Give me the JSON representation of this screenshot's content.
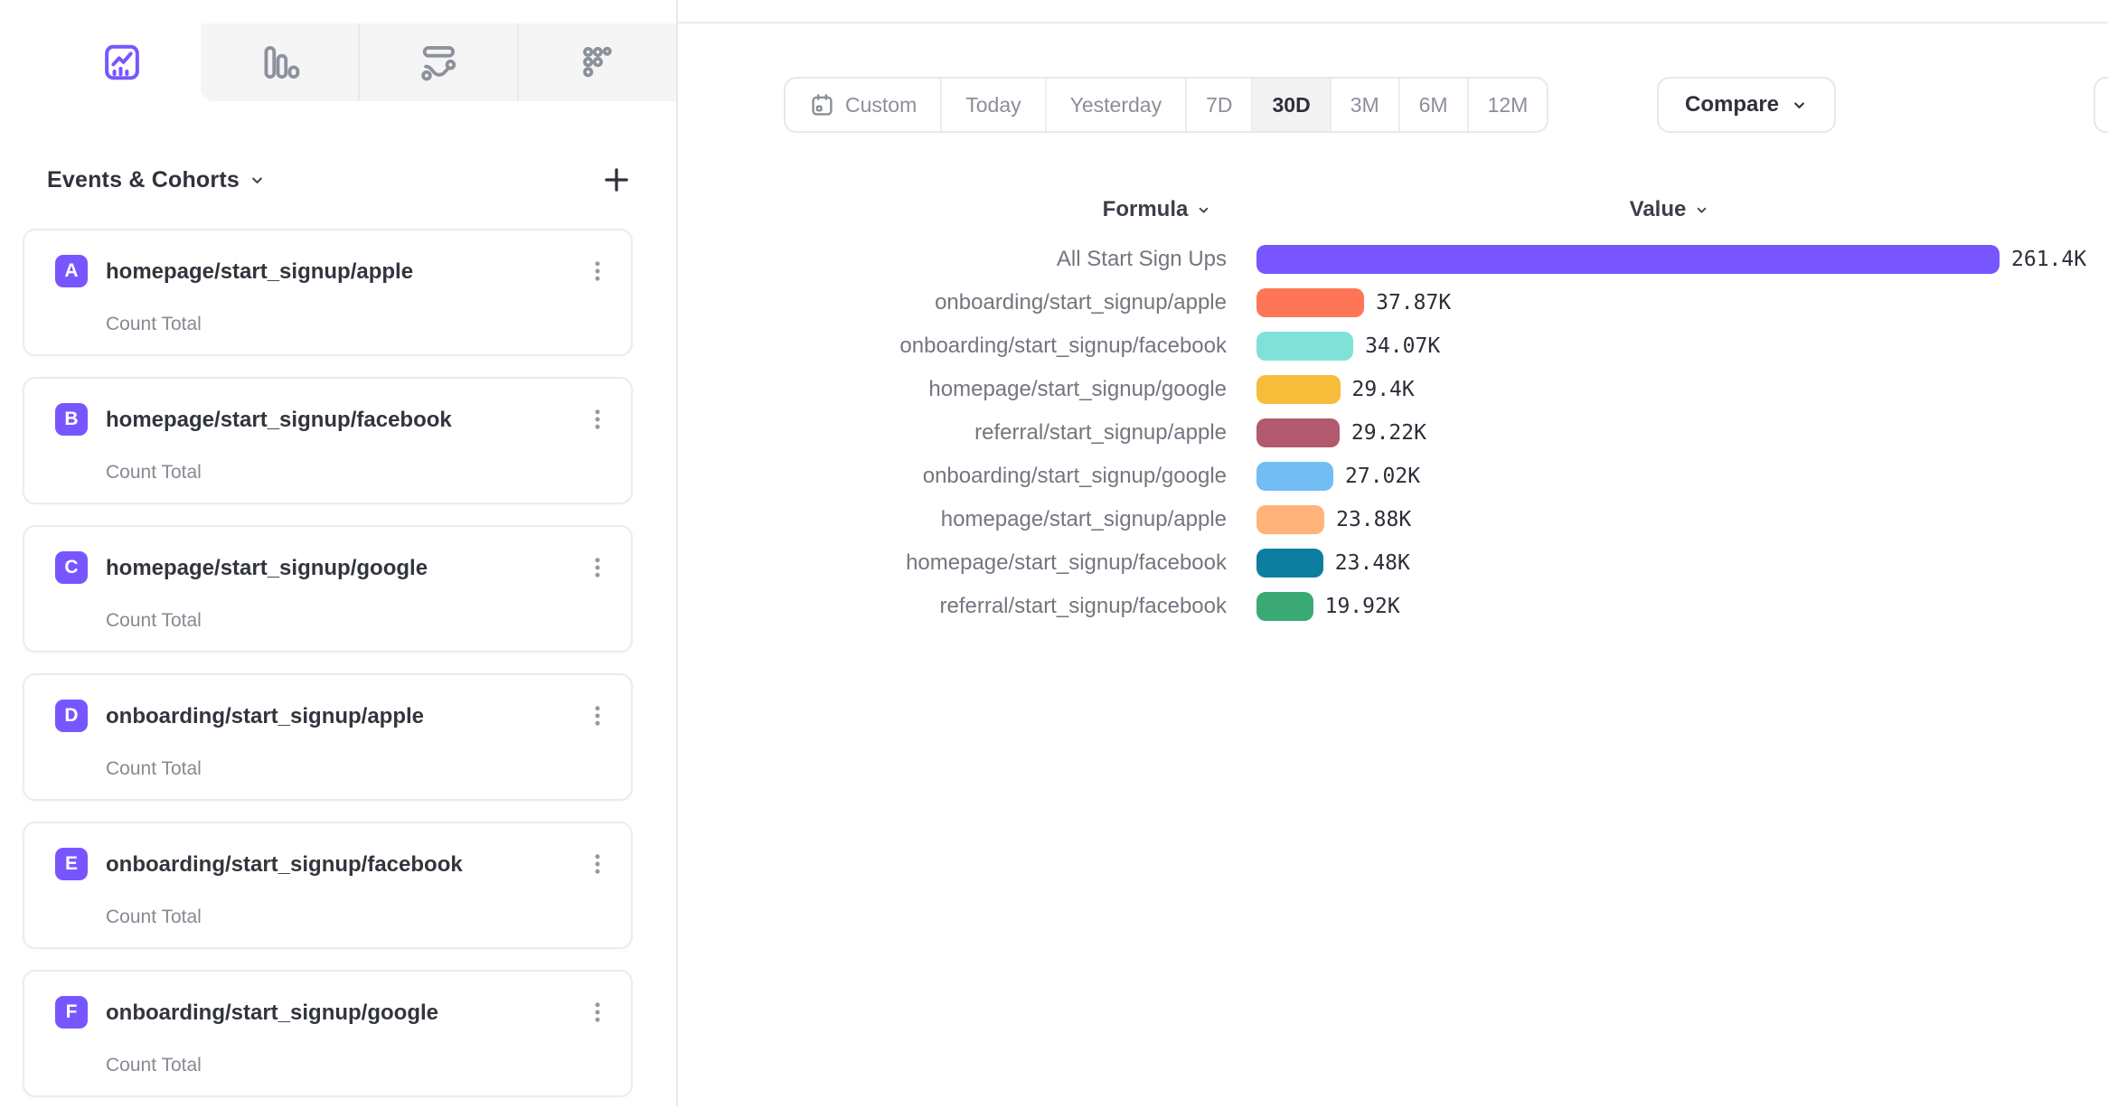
{
  "tabs": [
    {
      "id": "insights",
      "icon": "line-chart-icon",
      "selected": true
    },
    {
      "id": "bar-report",
      "icon": "bar-chart-icon",
      "selected": false
    },
    {
      "id": "flows",
      "icon": "flow-icon",
      "selected": false
    },
    {
      "id": "retention",
      "icon": "dots-grid-icon",
      "selected": false
    }
  ],
  "sidebar": {
    "title": "Events & Cohorts",
    "title_chevron_icon": "chevron-down-icon",
    "add_icon": "plus-icon",
    "badge_color": "#7856ff",
    "items": [
      {
        "letter": "A",
        "name": "homepage/start_signup/apple",
        "metric": "Count Total"
      },
      {
        "letter": "B",
        "name": "homepage/start_signup/facebook",
        "metric": "Count Total"
      },
      {
        "letter": "C",
        "name": "homepage/start_signup/google",
        "metric": "Count Total"
      },
      {
        "letter": "D",
        "name": "onboarding/start_signup/apple",
        "metric": "Count Total"
      },
      {
        "letter": "E",
        "name": "onboarding/start_signup/facebook",
        "metric": "Count Total"
      },
      {
        "letter": "F",
        "name": "onboarding/start_signup/google",
        "metric": "Count Total"
      }
    ]
  },
  "toolbar": {
    "date_ranges": [
      {
        "label": "Custom",
        "icon": "calendar-icon"
      },
      {
        "label": "Today"
      },
      {
        "label": "Yesterday"
      },
      {
        "label": "7D",
        "small": true
      },
      {
        "label": "30D",
        "small": true
      },
      {
        "label": "3M",
        "small": true
      },
      {
        "label": "6M",
        "small": true
      },
      {
        "label": "12M",
        "small": true
      }
    ],
    "selected_range": "30D",
    "compare_label": "Compare",
    "compare_chevron_icon": "chevron-down-icon"
  },
  "chart_data": {
    "type": "bar",
    "orientation": "horizontal",
    "column_headers": [
      "Formula",
      "Value"
    ],
    "categories": [
      "All Start Sign Ups",
      "onboarding/start_signup/apple",
      "onboarding/start_signup/facebook",
      "homepage/start_signup/google",
      "referral/start_signup/apple",
      "onboarding/start_signup/google",
      "homepage/start_signup/apple",
      "homepage/start_signup/facebook",
      "referral/start_signup/facebook"
    ],
    "values": [
      261400,
      37870,
      34070,
      29400,
      29220,
      27020,
      23880,
      23480,
      19920
    ],
    "value_labels": [
      "261.4K",
      "37.87K",
      "34.07K",
      "29.4K",
      "29.22K",
      "27.02K",
      "23.88K",
      "23.48K",
      "19.92K"
    ],
    "colors": [
      "#7856ff",
      "#ff7557",
      "#80e1d9",
      "#f8bc3b",
      "#b2596e",
      "#72bef4",
      "#ffb27a",
      "#0d7ea0",
      "#3ba974"
    ],
    "xlim": [
      0,
      261400
    ],
    "grid": false,
    "legend": false
  }
}
